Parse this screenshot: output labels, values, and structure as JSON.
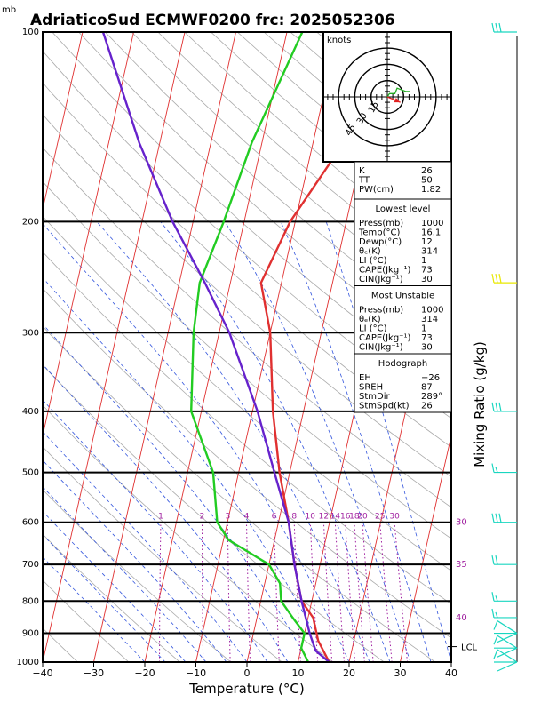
{
  "chart_data": {
    "type": "line",
    "title": "AdriaticoSud ECMWF0200 frc: 2025052306",
    "pressure_unit": "mb",
    "xlabel": "Temperature (°C)",
    "ylabel_right": "Mixing Ratio (g/kg)",
    "xlim": [
      -40,
      40
    ],
    "ylim": [
      1000,
      100
    ],
    "x_ticks": [
      "−40",
      "−30",
      "−20",
      "−10",
      "0",
      "10",
      "20",
      "30",
      "40"
    ],
    "x_tick_values": [
      -40,
      -30,
      -20,
      -10,
      0,
      10,
      20,
      30,
      40
    ],
    "p_levels": [
      "100",
      "200",
      "300",
      "400",
      "500",
      "600",
      "700",
      "800",
      "900",
      "1000"
    ],
    "p_level_values": [
      100,
      200,
      300,
      400,
      500,
      600,
      700,
      800,
      900,
      1000
    ],
    "mixing_ratio_labels": [
      "1",
      "2",
      "3",
      "4",
      "6",
      "8",
      "10",
      "12",
      "14",
      "16",
      "18",
      "20",
      "25",
      "30"
    ],
    "mixing_ratio_values": [
      1,
      2,
      3,
      4,
      6,
      8,
      10,
      12,
      14,
      16,
      18,
      20,
      25,
      30
    ],
    "theta_e_labels": [
      "30",
      "35",
      "40"
    ],
    "lcl_label": "LCL",
    "lcl_pressure": 945,
    "series": [
      {
        "name": "",
        "color": "#e03030",
        "points": [
          [
            16.1,
            1000
          ],
          [
            13,
            925
          ],
          [
            11,
            850
          ],
          [
            8,
            800
          ],
          [
            5,
            700
          ],
          [
            2,
            600
          ],
          [
            -2,
            500
          ],
          [
            -6,
            400
          ],
          [
            -10,
            300
          ],
          [
            -14,
            250
          ],
          [
            -11,
            200
          ],
          [
            -4,
            150
          ],
          [
            7,
            100
          ]
        ]
      },
      {
        "name": "",
        "color": "#22cc22",
        "points": [
          [
            12,
            1000
          ],
          [
            10,
            950
          ],
          [
            10,
            900
          ],
          [
            7,
            850
          ],
          [
            4,
            800
          ],
          [
            3,
            750
          ],
          [
            0,
            700
          ],
          [
            -9,
            640
          ],
          [
            -12,
            600
          ],
          [
            -15,
            500
          ],
          [
            -22,
            400
          ],
          [
            -25,
            300
          ],
          [
            -26,
            250
          ],
          [
            -24,
            200
          ],
          [
            -22,
            150
          ],
          [
            -17,
            100
          ]
        ]
      },
      {
        "name": "",
        "color": "#6622cc",
        "points": [
          [
            16.1,
            1000
          ],
          [
            13,
            960
          ],
          [
            12.5,
            945
          ],
          [
            11,
            900
          ],
          [
            8,
            800
          ],
          [
            5,
            700
          ],
          [
            2,
            600
          ],
          [
            -3,
            500
          ],
          [
            -9,
            400
          ],
          [
            -18,
            300
          ],
          [
            -25,
            250
          ],
          [
            -34,
            200
          ],
          [
            -44,
            150
          ],
          [
            -56,
            100
          ]
        ]
      }
    ],
    "wind_barbs": [
      {
        "pressure": 100,
        "barb": "tri"
      },
      {
        "pressure": 250,
        "barb": "pennant"
      },
      {
        "pressure": 400,
        "barb": "tri"
      },
      {
        "pressure": 500,
        "barb": "single"
      },
      {
        "pressure": 600,
        "barb": "tri"
      },
      {
        "pressure": 700,
        "barb": "double"
      },
      {
        "pressure": 800,
        "barb": "single"
      },
      {
        "pressure": 850,
        "barb": "single"
      },
      {
        "pressure": 900,
        "barb": "cross"
      },
      {
        "pressure": 950,
        "barb": "cross"
      },
      {
        "pressure": 1000,
        "barb": "cross"
      }
    ],
    "hodograph": {
      "title": "knots",
      "ring_labels": [
        "15",
        "30",
        "45"
      ],
      "ring_values": [
        15,
        30,
        45
      ],
      "trace": [
        [
          0,
          0
        ],
        [
          2,
          3
        ],
        [
          7,
          3
        ],
        [
          9,
          8
        ],
        [
          17,
          5
        ],
        [
          21,
          5
        ]
      ],
      "storm_motion": [
        12,
        -5
      ]
    },
    "indices": [
      {
        "label": "K",
        "value": "26"
      },
      {
        "label": "TT",
        "value": "50"
      },
      {
        "label": "PW(cm)",
        "value": "1.82"
      }
    ],
    "lowest_level": {
      "heading": "Lowest level",
      "rows": [
        {
          "label": "Press(mb)",
          "value": "1000"
        },
        {
          "label": "Temp(°C)",
          "value": "16.1"
        },
        {
          "label": "Dewp(°C)",
          "value": "12"
        },
        {
          "label": "θₑ(K)",
          "value": "314"
        },
        {
          "label": "LI (°C)",
          "value": "1"
        },
        {
          "label": "CAPE(Jkg⁻¹)",
          "value": "73"
        },
        {
          "label": "CIN(Jkg⁻¹)",
          "value": "30"
        }
      ]
    },
    "most_unstable": {
      "heading": "Most Unstable",
      "rows": [
        {
          "label": "Press(mb)",
          "value": "1000"
        },
        {
          "label": "θₑ(K)",
          "value": "314"
        },
        {
          "label": "LI (°C)",
          "value": "1"
        },
        {
          "label": "CAPE(Jkg⁻¹)",
          "value": "73"
        },
        {
          "label": "CIN(Jkg⁻¹)",
          "value": "30"
        }
      ]
    },
    "hodograph_stats": {
      "heading": "Hodograph",
      "rows": [
        {
          "label": "EH",
          "value": "−26"
        },
        {
          "label": "SREH",
          "value": "87"
        },
        {
          "label": "StmDir",
          "value": "289°"
        },
        {
          "label": "StmSpd(kt)",
          "value": "26"
        }
      ]
    },
    "colors": {
      "isotherm": "#e03030",
      "dry_adiabat": "#aaaaaa",
      "moist_adiabat": "#3355dd",
      "mixing_ratio": "#a020a0",
      "isobar": "#000000",
      "wind": "#1ad6c0",
      "wind_highlight": "#e8e800"
    }
  }
}
